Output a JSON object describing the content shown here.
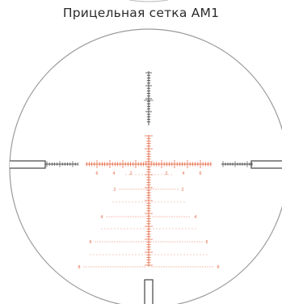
{
  "title": "Прицельная сетка AM1",
  "reticle": {
    "stadia_color": "#e56f4e",
    "line_color": "#444444",
    "circle_color": "#9a9a9a",
    "horizontal_labels": [
      "6",
      "4",
      "2",
      "2",
      "4",
      "6"
    ],
    "holdover_rows": [
      {
        "left": "2",
        "right": "2"
      },
      {
        "left": "4",
        "right": "4"
      },
      {
        "left": "6",
        "right": "6"
      },
      {
        "left": "8",
        "right": "8"
      }
    ]
  }
}
